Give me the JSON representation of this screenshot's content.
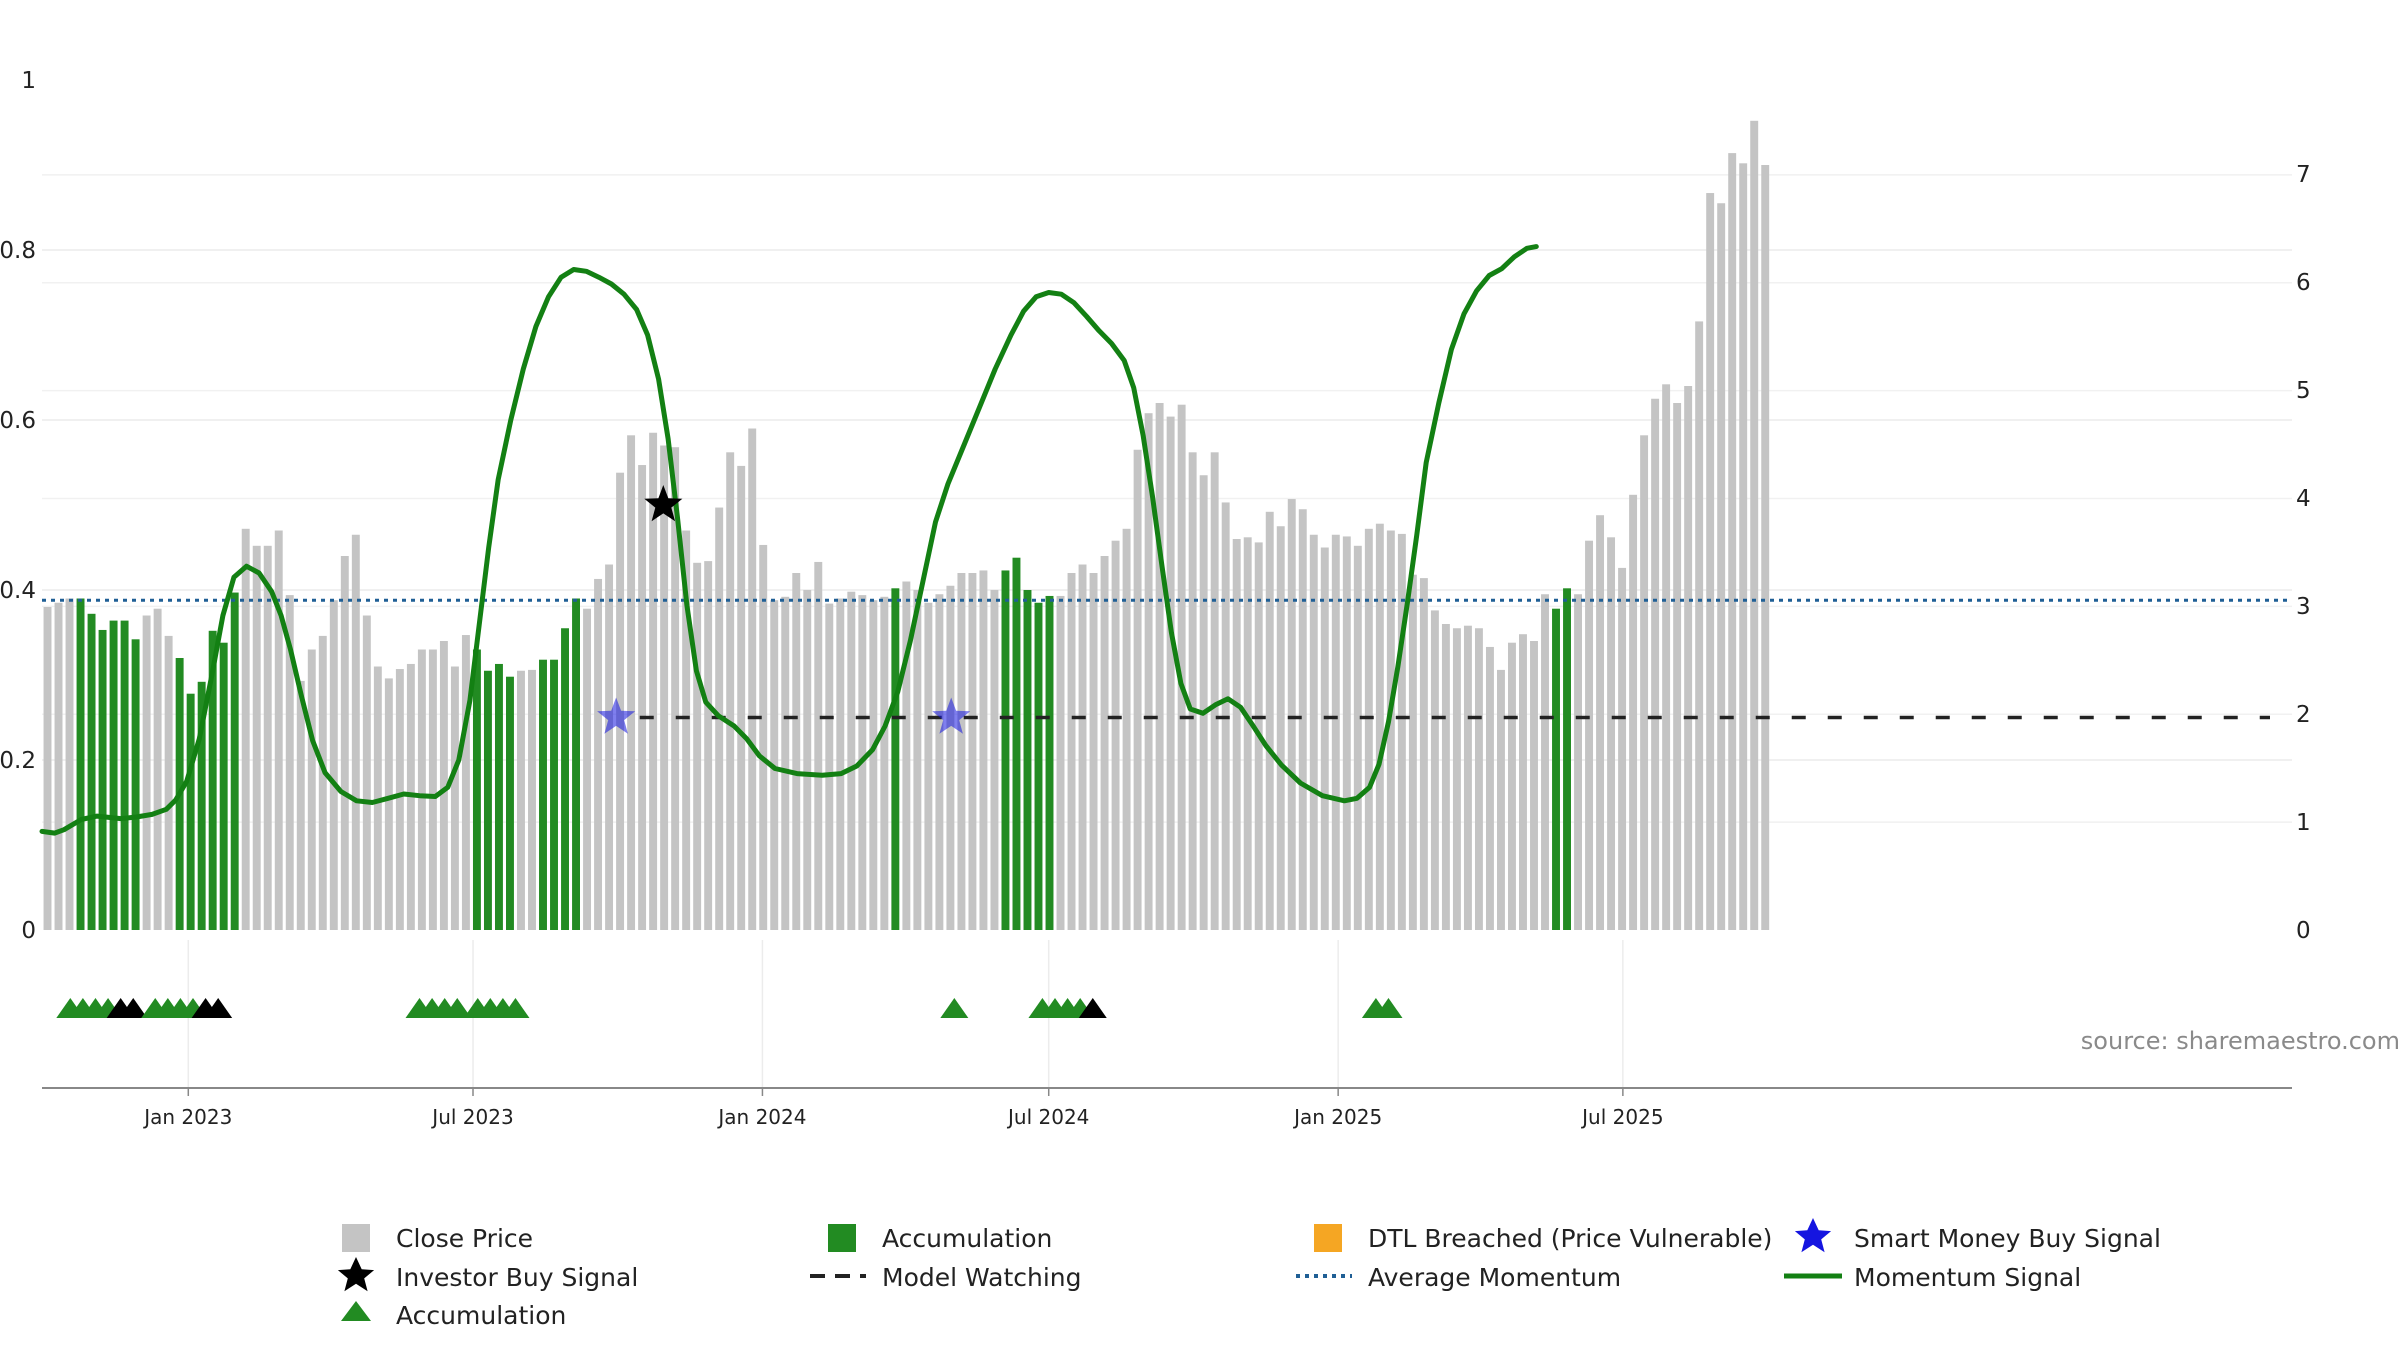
{
  "source_text": "source: sharemaestro.com",
  "colors": {
    "close_price": "#c4c4c4",
    "accumulation": "#228b22",
    "momentum": "#138013",
    "average_momentum": "#1f5f95",
    "model_watching": "#222222",
    "investor_signal": "#000000",
    "smart_money_signal": "#1515e0",
    "dtl": "#f5a623"
  },
  "legend": [
    {
      "key": "close_price",
      "label": "Close Price"
    },
    {
      "key": "accumulation_bar",
      "label": "Accumulation"
    },
    {
      "key": "dtl",
      "label": "DTL Breached (Price Vulnerable)"
    },
    {
      "key": "smart_money",
      "label": "Smart Money Buy Signal"
    },
    {
      "key": "investor_signal",
      "label": "Investor Buy Signal"
    },
    {
      "key": "model_watching",
      "label": "Model Watching"
    },
    {
      "key": "average_momentum",
      "label": "Average Momentum"
    },
    {
      "key": "momentum",
      "label": "Momentum Signal"
    },
    {
      "key": "accumulation_marker",
      "label": "Accumulation"
    }
  ],
  "chart_data": {
    "type": "bar",
    "x_start": "2022-09-30",
    "x_tick_labels": [
      "Jan 2023",
      "Jul 2023",
      "Jan 2024",
      "Jul 2024",
      "Jan 2025",
      "Jul 2025"
    ],
    "x_tick_dates": [
      "2023-01-01",
      "2023-07-01",
      "2024-01-01",
      "2024-07-01",
      "2025-01-01",
      "2025-07-01"
    ],
    "left_axis": {
      "ylim": [
        0,
        1
      ],
      "ticks": [
        "0",
        "0.2",
        "0.4",
        "0.6",
        "0.8",
        "1"
      ]
    },
    "right_axis": {
      "ylim": [
        0,
        7.88
      ],
      "ticks": [
        "0",
        "1",
        "2",
        "3",
        "4",
        "5",
        "6",
        "7"
      ]
    },
    "average_momentum": 0.388,
    "model_watching": {
      "level": 0.25,
      "start_date": "2023-10-15"
    },
    "close_price": [
      [
        0.38,
        0
      ],
      [
        0.385,
        0
      ],
      [
        0.39,
        0
      ],
      [
        0.39,
        1
      ],
      [
        0.372,
        1
      ],
      [
        0.353,
        1
      ],
      [
        0.364,
        1
      ],
      [
        0.364,
        1
      ],
      [
        0.342,
        1
      ],
      [
        0.37,
        0
      ],
      [
        0.378,
        0
      ],
      [
        0.346,
        0
      ],
      [
        0.32,
        1
      ],
      [
        0.278,
        1
      ],
      [
        0.292,
        1
      ],
      [
        0.352,
        1
      ],
      [
        0.338,
        1
      ],
      [
        0.397,
        1
      ],
      [
        0.472,
        0
      ],
      [
        0.452,
        0
      ],
      [
        0.452,
        0
      ],
      [
        0.47,
        0
      ],
      [
        0.394,
        0
      ],
      [
        0.293,
        0
      ],
      [
        0.33,
        0
      ],
      [
        0.346,
        0
      ],
      [
        0.388,
        0
      ],
      [
        0.44,
        0
      ],
      [
        0.465,
        0
      ],
      [
        0.37,
        0
      ],
      [
        0.31,
        0
      ],
      [
        0.296,
        0
      ],
      [
        0.307,
        0
      ],
      [
        0.313,
        0
      ],
      [
        0.33,
        0
      ],
      [
        0.33,
        0
      ],
      [
        0.34,
        0
      ],
      [
        0.31,
        0
      ],
      [
        0.347,
        0
      ],
      [
        0.33,
        1
      ],
      [
        0.305,
        1
      ],
      [
        0.313,
        1
      ],
      [
        0.298,
        1
      ],
      [
        0.305,
        0
      ],
      [
        0.306,
        0
      ],
      [
        0.318,
        1
      ],
      [
        0.318,
        1
      ],
      [
        0.355,
        1
      ],
      [
        0.39,
        1
      ],
      [
        0.378,
        0
      ],
      [
        0.413,
        0
      ],
      [
        0.43,
        0
      ],
      [
        0.538,
        0
      ],
      [
        0.582,
        0
      ],
      [
        0.547,
        0
      ],
      [
        0.585,
        0
      ],
      [
        0.57,
        0
      ],
      [
        0.568,
        0
      ],
      [
        0.47,
        0
      ],
      [
        0.432,
        0
      ],
      [
        0.434,
        0
      ],
      [
        0.497,
        0
      ],
      [
        0.562,
        0
      ],
      [
        0.546,
        0
      ],
      [
        0.59,
        0
      ],
      [
        0.453,
        0
      ],
      [
        0.388,
        0
      ],
      [
        0.392,
        0
      ],
      [
        0.42,
        0
      ],
      [
        0.4,
        0
      ],
      [
        0.433,
        0
      ],
      [
        0.384,
        0
      ],
      [
        0.39,
        0
      ],
      [
        0.398,
        0
      ],
      [
        0.394,
        0
      ],
      [
        0.388,
        0
      ],
      [
        0.392,
        0
      ],
      [
        0.402,
        1
      ],
      [
        0.41,
        0
      ],
      [
        0.4,
        0
      ],
      [
        0.385,
        0
      ],
      [
        0.395,
        0
      ],
      [
        0.405,
        0
      ],
      [
        0.42,
        0
      ],
      [
        0.42,
        0
      ],
      [
        0.423,
        0
      ],
      [
        0.4,
        0
      ],
      [
        0.423,
        1
      ],
      [
        0.438,
        1
      ],
      [
        0.4,
        1
      ],
      [
        0.385,
        1
      ],
      [
        0.393,
        1
      ],
      [
        0.393,
        0
      ],
      [
        0.42,
        0
      ],
      [
        0.43,
        0
      ],
      [
        0.42,
        0
      ],
      [
        0.44,
        0
      ],
      [
        0.458,
        0
      ],
      [
        0.472,
        0
      ],
      [
        0.565,
        0
      ],
      [
        0.608,
        0
      ],
      [
        0.62,
        0
      ],
      [
        0.604,
        0
      ],
      [
        0.618,
        0
      ],
      [
        0.562,
        0
      ],
      [
        0.535,
        0
      ],
      [
        0.562,
        0
      ],
      [
        0.503,
        0
      ],
      [
        0.46,
        0
      ],
      [
        0.462,
        0
      ],
      [
        0.456,
        0
      ],
      [
        0.492,
        0
      ],
      [
        0.475,
        0
      ],
      [
        0.507,
        0
      ],
      [
        0.495,
        0
      ],
      [
        0.465,
        0
      ],
      [
        0.45,
        0
      ],
      [
        0.465,
        0
      ],
      [
        0.463,
        0
      ],
      [
        0.452,
        0
      ],
      [
        0.472,
        0
      ],
      [
        0.478,
        0
      ],
      [
        0.47,
        0
      ],
      [
        0.466,
        0
      ],
      [
        0.418,
        0
      ],
      [
        0.414,
        0
      ],
      [
        0.376,
        0
      ],
      [
        0.36,
        0
      ],
      [
        0.355,
        0
      ],
      [
        0.358,
        0
      ],
      [
        0.355,
        0
      ],
      [
        0.333,
        0
      ],
      [
        0.306,
        0
      ],
      [
        0.338,
        0
      ],
      [
        0.348,
        0
      ],
      [
        0.34,
        0
      ],
      [
        0.395,
        0
      ],
      [
        0.378,
        1
      ],
      [
        0.402,
        1
      ],
      [
        0.395,
        0
      ],
      [
        0.458,
        0
      ],
      [
        0.488,
        0
      ],
      [
        0.462,
        0
      ],
      [
        0.426,
        0
      ],
      [
        0.512,
        0
      ],
      [
        0.582,
        0
      ],
      [
        0.625,
        0
      ],
      [
        0.642,
        0
      ],
      [
        0.62,
        0
      ],
      [
        0.64,
        0
      ],
      [
        0.716,
        0
      ],
      [
        0.867,
        0
      ],
      [
        0.855,
        0
      ],
      [
        0.914,
        0
      ],
      [
        0.902,
        0
      ],
      [
        0.952,
        0
      ],
      [
        0.9,
        0
      ]
    ],
    "momentum": [
      [
        0,
        0.116
      ],
      [
        8,
        0.114
      ],
      [
        14,
        0.118
      ],
      [
        25,
        0.13
      ],
      [
        35,
        0.134
      ],
      [
        50,
        0.131
      ],
      [
        60,
        0.133
      ],
      [
        70,
        0.136
      ],
      [
        79,
        0.142
      ],
      [
        85,
        0.153
      ],
      [
        92,
        0.175
      ],
      [
        100,
        0.225
      ],
      [
        108,
        0.3
      ],
      [
        115,
        0.37
      ],
      [
        122,
        0.415
      ],
      [
        130,
        0.428
      ],
      [
        138,
        0.42
      ],
      [
        146,
        0.398
      ],
      [
        152,
        0.37
      ],
      [
        158,
        0.33
      ],
      [
        165,
        0.275
      ],
      [
        172,
        0.223
      ],
      [
        180,
        0.185
      ],
      [
        190,
        0.163
      ],
      [
        200,
        0.152
      ],
      [
        210,
        0.15
      ],
      [
        220,
        0.155
      ],
      [
        230,
        0.16
      ],
      [
        240,
        0.158
      ],
      [
        250,
        0.157
      ],
      [
        258,
        0.168
      ],
      [
        265,
        0.2
      ],
      [
        272,
        0.27
      ],
      [
        278,
        0.36
      ],
      [
        284,
        0.45
      ],
      [
        290,
        0.53
      ],
      [
        298,
        0.6
      ],
      [
        306,
        0.66
      ],
      [
        314,
        0.71
      ],
      [
        322,
        0.745
      ],
      [
        330,
        0.768
      ],
      [
        338,
        0.777
      ],
      [
        346,
        0.775
      ],
      [
        354,
        0.768
      ],
      [
        362,
        0.76
      ],
      [
        370,
        0.748
      ],
      [
        378,
        0.73
      ],
      [
        385,
        0.7
      ],
      [
        392,
        0.648
      ],
      [
        398,
        0.578
      ],
      [
        404,
        0.485
      ],
      [
        410,
        0.382
      ],
      [
        416,
        0.305
      ],
      [
        422,
        0.268
      ],
      [
        430,
        0.252
      ],
      [
        440,
        0.24
      ],
      [
        448,
        0.225
      ],
      [
        456,
        0.205
      ],
      [
        466,
        0.19
      ],
      [
        480,
        0.184
      ],
      [
        496,
        0.182
      ],
      [
        508,
        0.184
      ],
      [
        518,
        0.193
      ],
      [
        528,
        0.212
      ],
      [
        536,
        0.24
      ],
      [
        544,
        0.28
      ],
      [
        552,
        0.34
      ],
      [
        560,
        0.41
      ],
      [
        568,
        0.48
      ],
      [
        576,
        0.525
      ],
      [
        586,
        0.57
      ],
      [
        596,
        0.615
      ],
      [
        606,
        0.66
      ],
      [
        616,
        0.7
      ],
      [
        624,
        0.728
      ],
      [
        632,
        0.745
      ],
      [
        640,
        0.75
      ],
      [
        648,
        0.748
      ],
      [
        656,
        0.738
      ],
      [
        664,
        0.722
      ],
      [
        672,
        0.705
      ],
      [
        680,
        0.69
      ],
      [
        688,
        0.67
      ],
      [
        694,
        0.638
      ],
      [
        700,
        0.582
      ],
      [
        706,
        0.51
      ],
      [
        712,
        0.428
      ],
      [
        718,
        0.35
      ],
      [
        724,
        0.29
      ],
      [
        730,
        0.26
      ],
      [
        738,
        0.255
      ],
      [
        746,
        0.265
      ],
      [
        754,
        0.272
      ],
      [
        762,
        0.262
      ],
      [
        770,
        0.24
      ],
      [
        778,
        0.217
      ],
      [
        788,
        0.194
      ],
      [
        800,
        0.173
      ],
      [
        814,
        0.158
      ],
      [
        828,
        0.152
      ],
      [
        836,
        0.155
      ],
      [
        844,
        0.168
      ],
      [
        850,
        0.195
      ],
      [
        856,
        0.245
      ],
      [
        862,
        0.31
      ],
      [
        868,
        0.385
      ],
      [
        874,
        0.465
      ],
      [
        880,
        0.55
      ],
      [
        888,
        0.62
      ],
      [
        896,
        0.683
      ],
      [
        904,
        0.725
      ],
      [
        912,
        0.752
      ],
      [
        920,
        0.77
      ],
      [
        928,
        0.778
      ],
      [
        936,
        0.792
      ],
      [
        944,
        0.802
      ],
      [
        950,
        0.804
      ]
    ],
    "investor_signals": [
      {
        "day": 395,
        "value": 0.5
      }
    ],
    "smart_money_signals": [
      {
        "day": 365,
        "value": 0.25
      },
      {
        "day": 578,
        "value": 0.25
      }
    ],
    "accumulation_markers": [
      {
        "day": 18,
        "type": "accumulation"
      },
      {
        "day": 26,
        "type": "accumulation"
      },
      {
        "day": 34,
        "type": "accumulation"
      },
      {
        "day": 42,
        "type": "accumulation"
      },
      {
        "day": 50,
        "type": "investor"
      },
      {
        "day": 58,
        "type": "investor"
      },
      {
        "day": 72,
        "type": "accumulation"
      },
      {
        "day": 80,
        "type": "accumulation"
      },
      {
        "day": 88,
        "type": "accumulation"
      },
      {
        "day": 96,
        "type": "accumulation"
      },
      {
        "day": 104,
        "type": "investor"
      },
      {
        "day": 112,
        "type": "investor"
      },
      {
        "day": 240,
        "type": "accumulation"
      },
      {
        "day": 248,
        "type": "accumulation"
      },
      {
        "day": 256,
        "type": "accumulation"
      },
      {
        "day": 264,
        "type": "accumulation"
      },
      {
        "day": 277,
        "type": "accumulation"
      },
      {
        "day": 285,
        "type": "accumulation"
      },
      {
        "day": 293,
        "type": "accumulation"
      },
      {
        "day": 301,
        "type": "accumulation"
      },
      {
        "day": 580,
        "type": "accumulation"
      },
      {
        "day": 636,
        "type": "accumulation"
      },
      {
        "day": 644,
        "type": "accumulation"
      },
      {
        "day": 652,
        "type": "accumulation"
      },
      {
        "day": 660,
        "type": "accumulation"
      },
      {
        "day": 668,
        "type": "investor"
      },
      {
        "day": 848,
        "type": "accumulation"
      },
      {
        "day": 856,
        "type": "accumulation"
      }
    ]
  }
}
